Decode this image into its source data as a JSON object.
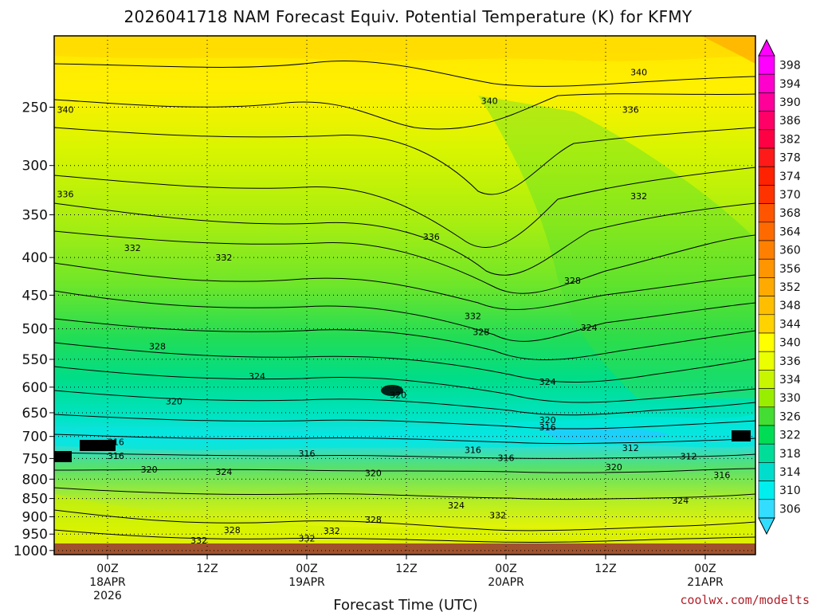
{
  "chart_data": {
    "type": "heatmap",
    "title": "2026041718 NAM Forecast Equiv. Potential Temperature (K) for KFMY",
    "xlabel": "Forecast Time (UTC)",
    "ylabel": "",
    "credit": "coolwx.com/modelts",
    "y_axis": {
      "scale": "pressure (decreasing upward)",
      "ticks": [
        250,
        300,
        350,
        400,
        450,
        500,
        550,
        600,
        650,
        700,
        750,
        800,
        850,
        900,
        950,
        1000
      ],
      "ylim": [
        1013,
        200
      ]
    },
    "x_axis": {
      "ticks": [
        {
          "line1": "00Z",
          "line2": "18APR",
          "line3": "2026"
        },
        {
          "line1": "12Z",
          "line2": "",
          "line3": ""
        },
        {
          "line1": "00Z",
          "line2": "19APR",
          "line3": ""
        },
        {
          "line1": "12Z",
          "line2": "",
          "line3": ""
        },
        {
          "line1": "00Z",
          "line2": "20APR",
          "line3": ""
        },
        {
          "line1": "12Z",
          "line2": "",
          "line3": ""
        },
        {
          "line1": "00Z",
          "line2": "21APR",
          "line3": ""
        }
      ]
    },
    "colorbar": {
      "levels": [
        398,
        394,
        390,
        386,
        382,
        378,
        374,
        370,
        368,
        364,
        360,
        356,
        352,
        348,
        344,
        340,
        336,
        334,
        330,
        326,
        322,
        318,
        314,
        310,
        306
      ],
      "colors": [
        "#ff00ff",
        "#ff00cc",
        "#ff0099",
        "#ff0066",
        "#ff0044",
        "#ff1a1a",
        "#ff2200",
        "#ff3300",
        "#ff5500",
        "#ff6a00",
        "#ff8000",
        "#ff9500",
        "#ffaa00",
        "#ffbf00",
        "#ffd200",
        "#ffff00",
        "#eaff00",
        "#c8f500",
        "#99ee00",
        "#44dd33",
        "#00dd55",
        "#00dd99",
        "#00ddcc",
        "#00eeee",
        "#33ddff"
      ]
    },
    "contour_labels": [
      {
        "text": "340",
        "x_hours": -8,
        "p": 252
      },
      {
        "text": "340",
        "x_hours": 46,
        "p": 245
      },
      {
        "text": "340",
        "x_hours": 64,
        "p": 224
      },
      {
        "text": "336",
        "x_hours": 63,
        "p": 252
      },
      {
        "text": "336",
        "x_hours": -10,
        "p": 328
      },
      {
        "text": "336",
        "x_hours": 39,
        "p": 375
      },
      {
        "text": "332",
        "x_hours": 3,
        "p": 388
      },
      {
        "text": "332",
        "x_hours": 14,
        "p": 400
      },
      {
        "text": "332",
        "x_hours": 64,
        "p": 330
      },
      {
        "text": "332",
        "x_hours": 44,
        "p": 480
      },
      {
        "text": "328",
        "x_hours": 6,
        "p": 528
      },
      {
        "text": "328",
        "x_hours": 56,
        "p": 430
      },
      {
        "text": "328",
        "x_hours": 45,
        "p": 505
      },
      {
        "text": "324",
        "x_hours": 18,
        "p": 580
      },
      {
        "text": "324",
        "x_hours": 58,
        "p": 498
      },
      {
        "text": "324",
        "x_hours": 53,
        "p": 590
      },
      {
        "text": "320",
        "x_hours": 8,
        "p": 627
      },
      {
        "text": "320",
        "x_hours": 35,
        "p": 615
      },
      {
        "text": "320",
        "x_hours": 53,
        "p": 665
      },
      {
        "text": "316",
        "x_hours": 1,
        "p": 712
      },
      {
        "text": "316",
        "x_hours": 1,
        "p": 744
      },
      {
        "text": "316",
        "x_hours": 24,
        "p": 738
      },
      {
        "text": "316",
        "x_hours": 44,
        "p": 730
      },
      {
        "text": "316",
        "x_hours": 53,
        "p": 680
      },
      {
        "text": "316",
        "x_hours": 48,
        "p": 748
      },
      {
        "text": "312",
        "x_hours": 63,
        "p": 725
      },
      {
        "text": "312",
        "x_hours": 70,
        "p": 745
      },
      {
        "text": "320",
        "x_hours": 5,
        "p": 776
      },
      {
        "text": "324",
        "x_hours": 14,
        "p": 782
      },
      {
        "text": "320",
        "x_hours": 32,
        "p": 785
      },
      {
        "text": "320",
        "x_hours": 61,
        "p": 770
      },
      {
        "text": "316",
        "x_hours": 74,
        "p": 790
      },
      {
        "text": "324",
        "x_hours": 42,
        "p": 868
      },
      {
        "text": "324",
        "x_hours": 69,
        "p": 855
      },
      {
        "text": "332",
        "x_hours": 47,
        "p": 895
      },
      {
        "text": "328",
        "x_hours": 32,
        "p": 908
      },
      {
        "text": "328",
        "x_hours": 15,
        "p": 938
      },
      {
        "text": "332",
        "x_hours": 11,
        "p": 968
      },
      {
        "text": "332",
        "x_hours": 27,
        "p": 940
      },
      {
        "text": "332",
        "x_hours": 24,
        "p": 962
      }
    ]
  }
}
